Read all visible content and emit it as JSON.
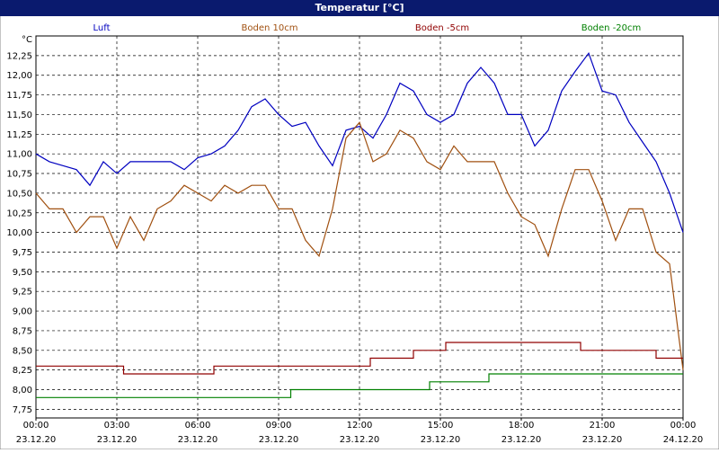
{
  "chart_data": {
    "type": "line",
    "title": "Temperatur [°C]",
    "y_unit": "°C",
    "xlim": [
      0,
      24
    ],
    "ylim": [
      7.64,
      12.5
    ],
    "grid": true,
    "legend": "top",
    "xticks": [
      {
        "value": 0,
        "label": "00:00",
        "sublabel": "23.12.20"
      },
      {
        "value": 3,
        "label": "03:00",
        "sublabel": "23.12.20"
      },
      {
        "value": 6,
        "label": "06:00",
        "sublabel": "23.12.20"
      },
      {
        "value": 9,
        "label": "09:00",
        "sublabel": "23.12.20"
      },
      {
        "value": 12,
        "label": "12:00",
        "sublabel": "23.12.20"
      },
      {
        "value": 15,
        "label": "15:00",
        "sublabel": "23.12.20"
      },
      {
        "value": 18,
        "label": "18:00",
        "sublabel": "23.12.20"
      },
      {
        "value": 21,
        "label": "21:00",
        "sublabel": "23.12.20"
      },
      {
        "value": 24,
        "label": "00:00",
        "sublabel": "24.12.20"
      }
    ],
    "yticks": [
      {
        "value": 7.75,
        "label": "7,75"
      },
      {
        "value": 8,
        "label": "8,00"
      },
      {
        "value": 8.25,
        "label": "8,25"
      },
      {
        "value": 8.5,
        "label": "8,50"
      },
      {
        "value": 8.75,
        "label": "8,75"
      },
      {
        "value": 9,
        "label": "9,00"
      },
      {
        "value": 9.25,
        "label": "9,25"
      },
      {
        "value": 9.5,
        "label": "9,50"
      },
      {
        "value": 9.75,
        "label": "9,75"
      },
      {
        "value": 10,
        "label": "10,00"
      },
      {
        "value": 10.25,
        "label": "10,25"
      },
      {
        "value": 10.5,
        "label": "10,50"
      },
      {
        "value": 10.75,
        "label": "10,75"
      },
      {
        "value": 11,
        "label": "11,00"
      },
      {
        "value": 11.25,
        "label": "11,25"
      },
      {
        "value": 11.5,
        "label": "11,50"
      },
      {
        "value": 11.75,
        "label": "11,75"
      },
      {
        "value": 12,
        "label": "12,00"
      },
      {
        "value": 12.25,
        "label": "12,25"
      }
    ],
    "series": [
      {
        "name": "Luft",
        "color": "#0000c0",
        "x": [
          0,
          0.5,
          1,
          1.5,
          2,
          2.5,
          3,
          3.5,
          4,
          4.5,
          5,
          5.5,
          6,
          6.5,
          7,
          7.5,
          8,
          8.5,
          9,
          9.5,
          10,
          10.5,
          11,
          11.5,
          12,
          12.5,
          13,
          13.5,
          14,
          14.5,
          15,
          15.5,
          16,
          16.5,
          17,
          17.5,
          18,
          18.5,
          19,
          19.5,
          20,
          20.5,
          21,
          21.5,
          22,
          22.5,
          23,
          23.5,
          24
        ],
        "values": [
          11.0,
          10.9,
          10.85,
          10.8,
          10.6,
          10.9,
          10.75,
          10.9,
          10.9,
          10.9,
          10.9,
          10.8,
          10.95,
          11.0,
          11.1,
          11.3,
          11.6,
          11.7,
          11.5,
          11.35,
          11.4,
          11.1,
          10.85,
          11.3,
          11.35,
          11.2,
          11.5,
          11.9,
          11.8,
          11.5,
          11.4,
          11.5,
          11.9,
          12.1,
          11.9,
          11.5,
          11.5,
          11.1,
          11.3,
          11.8,
          12.05,
          12.28,
          11.8,
          11.75,
          11.4,
          11.15,
          10.9,
          10.5,
          10.0
        ]
      },
      {
        "name": "Boden 10cm",
        "color": "#a05010",
        "x": [
          0,
          0.5,
          1,
          1.5,
          2,
          2.5,
          3,
          3.5,
          4,
          4.5,
          5,
          5.5,
          6,
          6.5,
          7,
          7.5,
          8,
          8.5,
          9,
          9.5,
          10,
          10.5,
          11,
          11.5,
          12,
          12.5,
          13,
          13.5,
          14,
          14.5,
          15,
          15.5,
          16,
          16.5,
          17,
          17.5,
          18,
          18.5,
          19,
          19.5,
          20,
          20.5,
          21,
          21.5,
          22,
          22.5,
          23,
          23.5,
          24
        ],
        "values": [
          10.5,
          10.3,
          10.3,
          10.0,
          10.2,
          10.2,
          9.8,
          10.2,
          9.9,
          10.3,
          10.4,
          10.6,
          10.5,
          10.4,
          10.6,
          10.5,
          10.6,
          10.6,
          10.3,
          10.3,
          9.9,
          9.7,
          10.3,
          11.2,
          11.4,
          10.9,
          11.0,
          11.3,
          11.2,
          10.9,
          10.8,
          11.1,
          10.9,
          10.9,
          10.9,
          10.5,
          10.2,
          10.1,
          9.7,
          10.3,
          10.8,
          10.8,
          10.4,
          9.9,
          10.3,
          10.3,
          9.75,
          9.6,
          8.25
        ]
      },
      {
        "name": "Boden -5cm",
        "color": "#900000",
        "x": [
          0,
          3.25,
          3.25,
          6.6,
          6.6,
          12.4,
          12.4,
          14,
          14,
          15.2,
          15.2,
          20.2,
          20.2,
          23,
          23,
          24
        ],
        "values": [
          8.3,
          8.3,
          8.2,
          8.2,
          8.3,
          8.3,
          8.4,
          8.4,
          8.5,
          8.5,
          8.6,
          8.6,
          8.5,
          8.5,
          8.4,
          8.4
        ]
      },
      {
        "name": "Boden -20cm",
        "color": "#008000",
        "x": [
          0,
          9.45,
          9.45,
          14.6,
          14.6,
          16.8,
          16.8,
          24
        ],
        "values": [
          7.9,
          7.9,
          8.0,
          8.0,
          8.1,
          8.1,
          8.2,
          8.2
        ]
      }
    ]
  }
}
